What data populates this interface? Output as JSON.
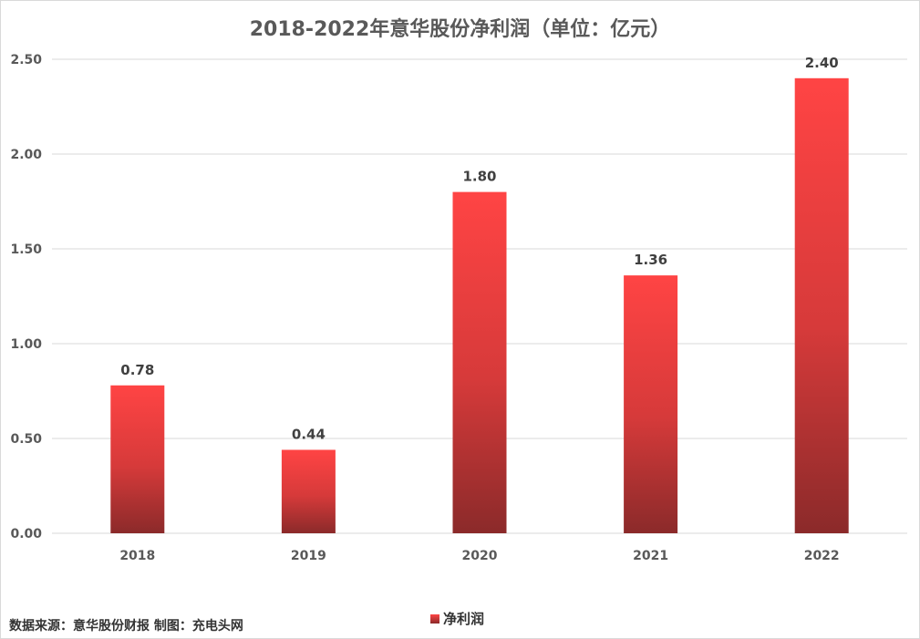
{
  "chart_data": {
    "type": "bar",
    "title": "2018-2022年意华股份净利润（单位：亿元）",
    "categories": [
      "2018",
      "2019",
      "2020",
      "2021",
      "2022"
    ],
    "series": [
      {
        "name": "净利润",
        "values": [
          0.78,
          0.44,
          1.8,
          1.36,
          2.4
        ]
      }
    ],
    "data_labels": [
      "0.78",
      "0.44",
      "1.80",
      "1.36",
      "2.40"
    ],
    "y_ticks": [
      "0.00",
      "0.50",
      "1.00",
      "1.50",
      "2.00",
      "2.50"
    ],
    "ylim": [
      0,
      2.5
    ],
    "grid": true,
    "legend": "bottom",
    "colors": {
      "bar_top": "#ff4444",
      "bar_bottom": "#8b2a2a",
      "grid": "#d9d9d9"
    }
  },
  "footer": {
    "source": "数据来源：意华股份财报 制图：充电头网"
  }
}
